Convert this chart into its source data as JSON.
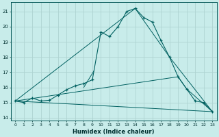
{
  "xlabel": "Humidex (Indice chaleur)",
  "background_color": "#c8ecea",
  "grid_color": "#aed4d2",
  "line_color": "#006060",
  "xlim": [
    -0.5,
    23.5
  ],
  "ylim": [
    13.8,
    21.6
  ],
  "yticks": [
    14,
    15,
    16,
    17,
    18,
    19,
    20,
    21
  ],
  "xticks": [
    0,
    1,
    2,
    3,
    4,
    5,
    6,
    7,
    8,
    9,
    10,
    11,
    12,
    13,
    14,
    15,
    16,
    17,
    18,
    19,
    20,
    21,
    22,
    23
  ],
  "series": {
    "main": {
      "x": [
        0,
        1,
        2,
        3,
        4,
        5,
        6,
        7,
        8,
        9,
        10,
        11,
        12,
        13,
        14,
        15,
        16,
        17,
        18,
        19,
        20,
        21,
        22,
        23
      ],
      "y": [
        15.1,
        15.0,
        15.3,
        15.1,
        15.15,
        15.5,
        15.85,
        16.1,
        16.25,
        16.5,
        19.65,
        19.35,
        20.0,
        21.0,
        21.2,
        20.6,
        20.3,
        19.1,
        18.0,
        16.7,
        15.9,
        15.1,
        15.0,
        14.4
      ]
    },
    "upper_envelope": {
      "x": [
        0,
        14,
        18,
        23
      ],
      "y": [
        15.1,
        21.2,
        18.0,
        14.4
      ]
    },
    "lower_envelope": {
      "x": [
        0,
        23
      ],
      "y": [
        15.1,
        14.4
      ]
    },
    "middle_line": {
      "x": [
        0,
        19,
        20,
        23
      ],
      "y": [
        15.1,
        16.7,
        15.9,
        14.4
      ]
    },
    "short_diag": {
      "x": [
        8.0,
        9.2
      ],
      "y": [
        16.0,
        17.1
      ]
    }
  }
}
